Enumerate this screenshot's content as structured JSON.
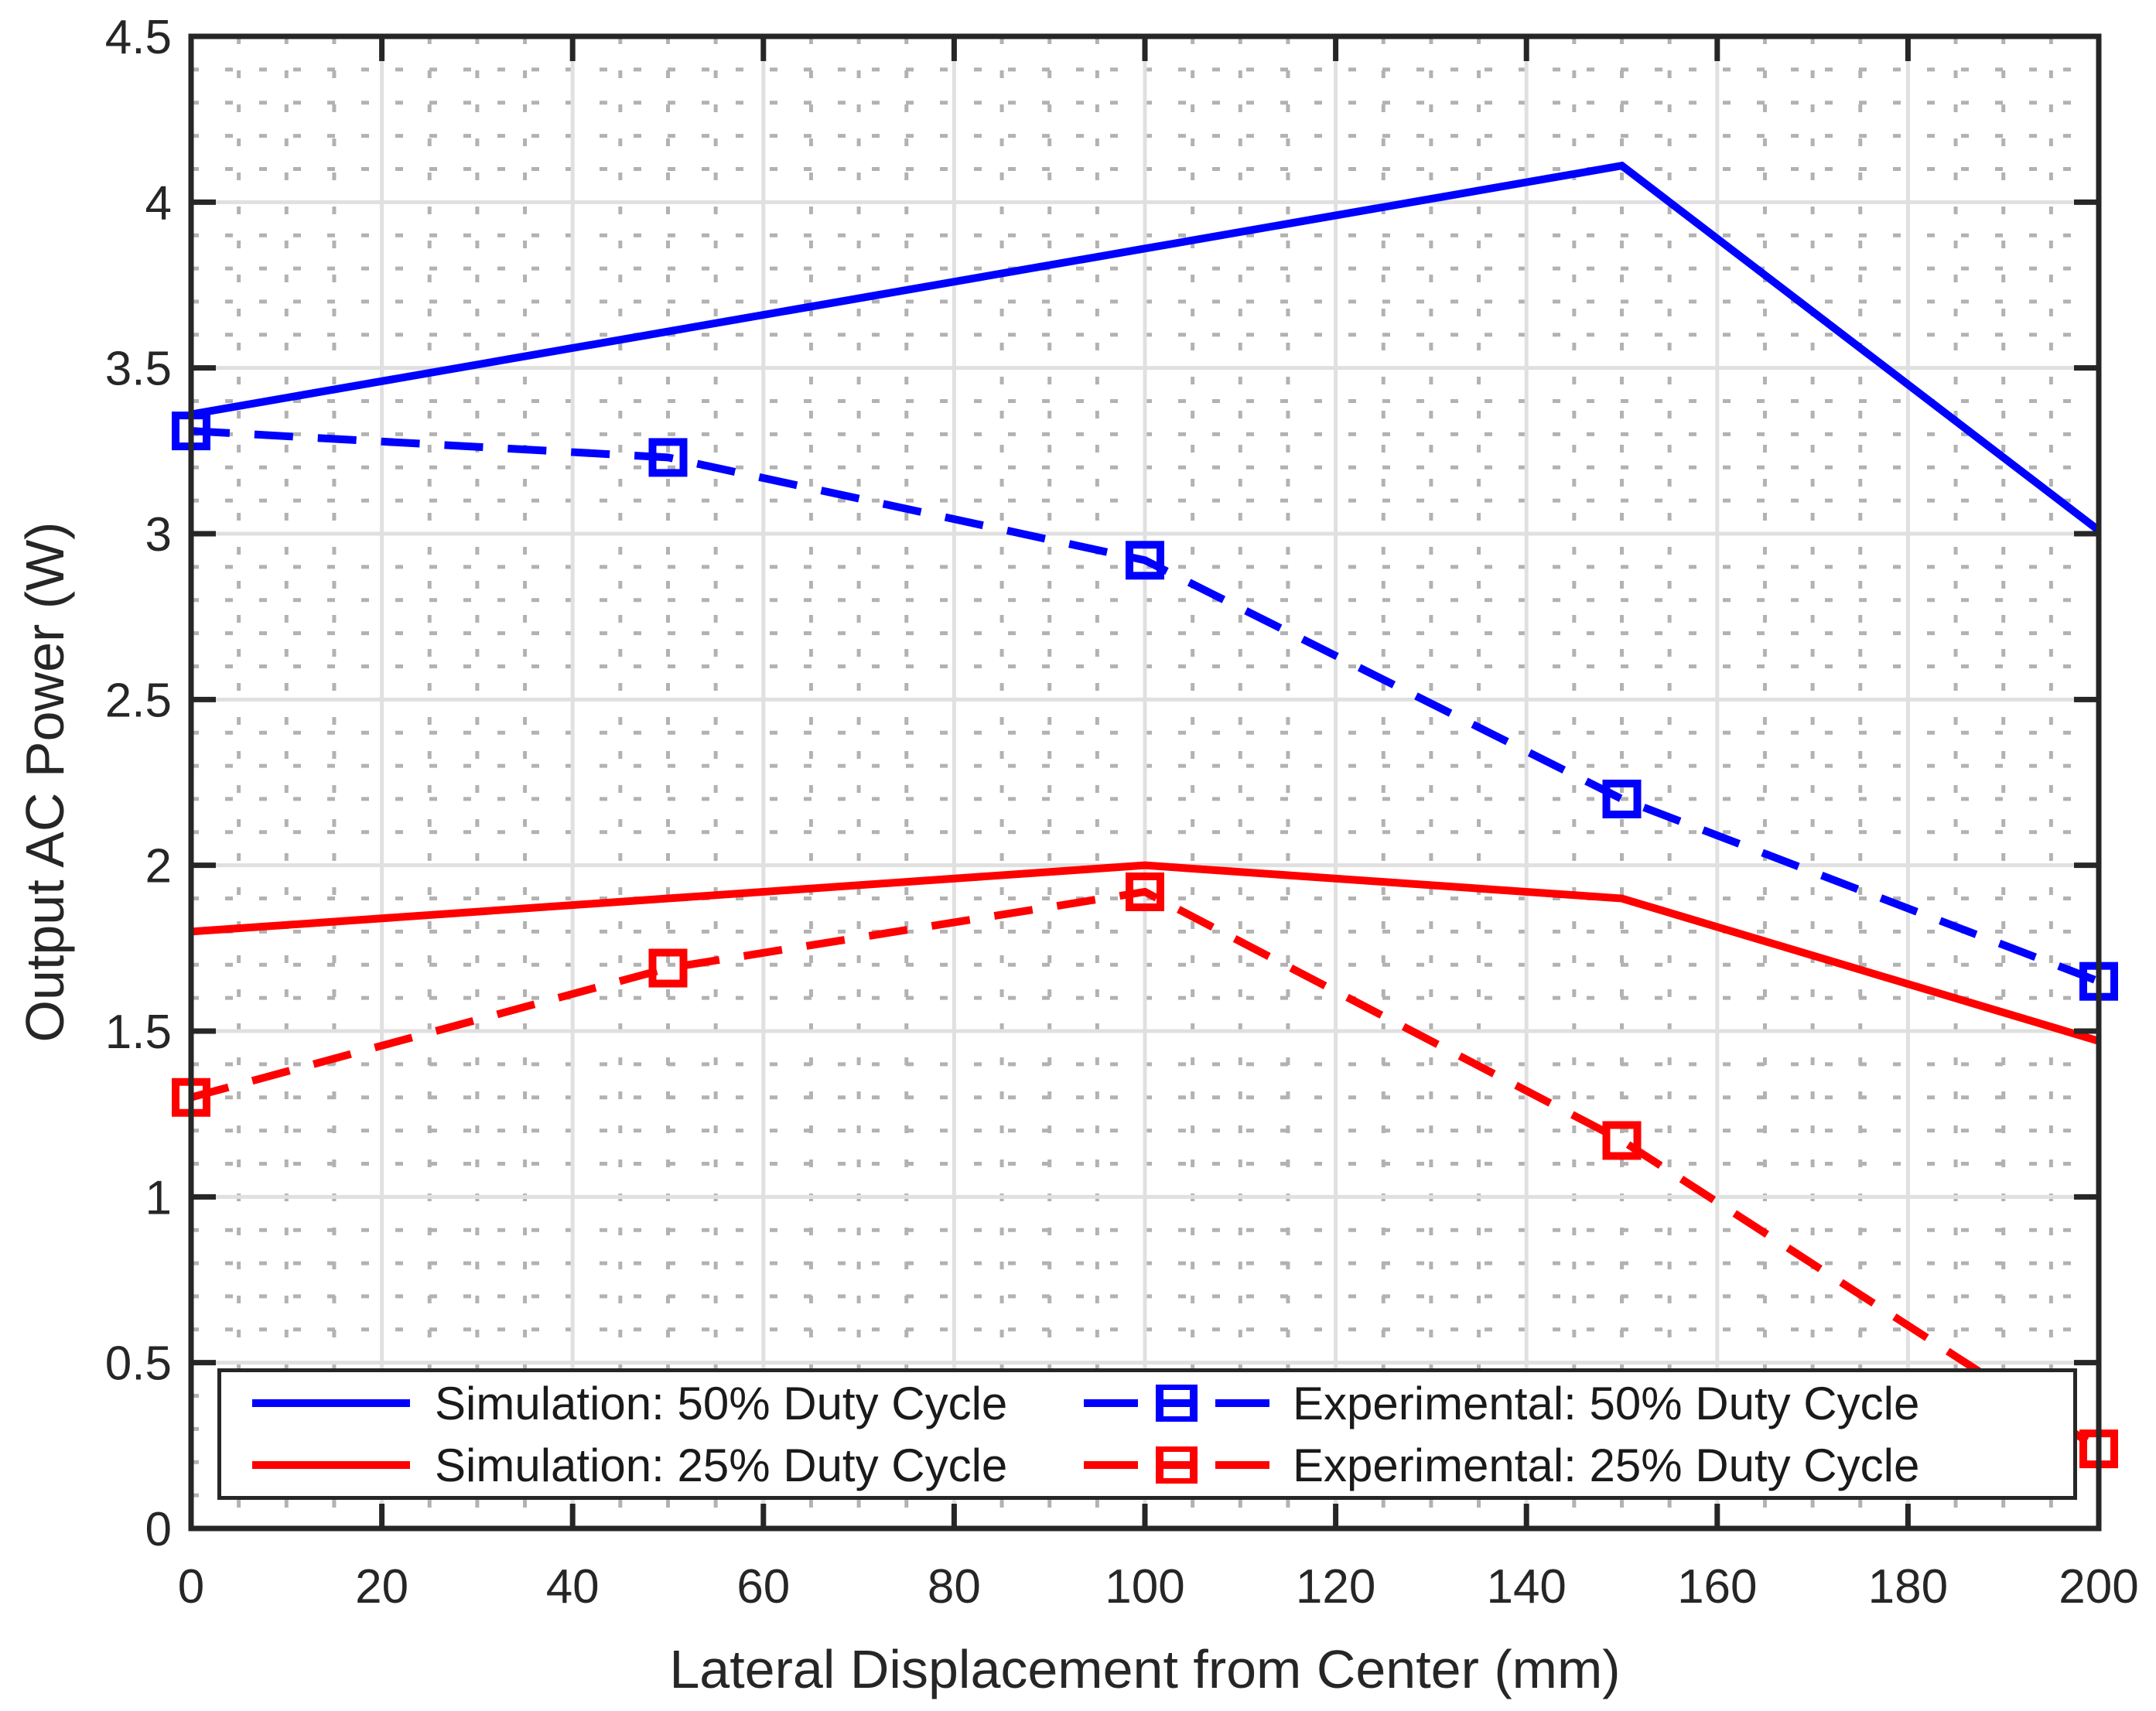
{
  "figure": {
    "background": "#ffffff",
    "axis_color": "#262626",
    "major_grid_color": "#e0e0e0",
    "minor_grid_color": "#b2b2b2",
    "blue": "#0000ff",
    "red": "#ff0000"
  },
  "chart_data": {
    "type": "line",
    "title": "",
    "xlabel": "Lateral Displacement from Center (mm)",
    "ylabel": "Output AC Power (W)",
    "xlim": [
      0,
      200
    ],
    "ylim": [
      0,
      4.5
    ],
    "xticks": [
      0,
      20,
      40,
      60,
      80,
      100,
      120,
      140,
      160,
      180,
      200
    ],
    "xtick_labels": [
      "0",
      "20",
      "40",
      "60",
      "80",
      "100",
      "120",
      "140",
      "160",
      "180",
      "200"
    ],
    "yticks": [
      0,
      0.5,
      1,
      1.5,
      2,
      2.5,
      3,
      3.5,
      4,
      4.5
    ],
    "ytick_labels": [
      "0",
      "0.5",
      "1",
      "1.5",
      "2",
      "2.5",
      "3",
      "3.5",
      "4",
      "4.5"
    ],
    "grid": {
      "major": true,
      "minor": true,
      "minor_x_step": 5,
      "minor_y_step": 0.1
    },
    "legend_position": "south-inside",
    "x": [
      0,
      50,
      100,
      150,
      200
    ],
    "series": [
      {
        "name": "Simulation: 50% Duty Cycle",
        "color": "#0000ff",
        "line_style": "solid",
        "marker": "none",
        "values": [
          3.36,
          3.61,
          3.86,
          4.11,
          3.01
        ]
      },
      {
        "name": "Experimental: 50% Duty Cycle",
        "color": "#0000ff",
        "line_style": "dashed",
        "marker": "square",
        "values": [
          3.31,
          3.23,
          2.92,
          2.2,
          1.65
        ]
      },
      {
        "name": "Simulation: 25% Duty Cycle",
        "color": "#ff0000",
        "line_style": "solid",
        "marker": "none",
        "values": [
          1.8,
          1.9,
          2.0,
          1.9,
          1.47
        ]
      },
      {
        "name": "Experimental: 25% Duty Cycle",
        "color": "#ff0000",
        "line_style": "dashed",
        "marker": "square",
        "values": [
          1.3,
          1.69,
          1.92,
          1.17,
          0.24
        ]
      }
    ]
  }
}
